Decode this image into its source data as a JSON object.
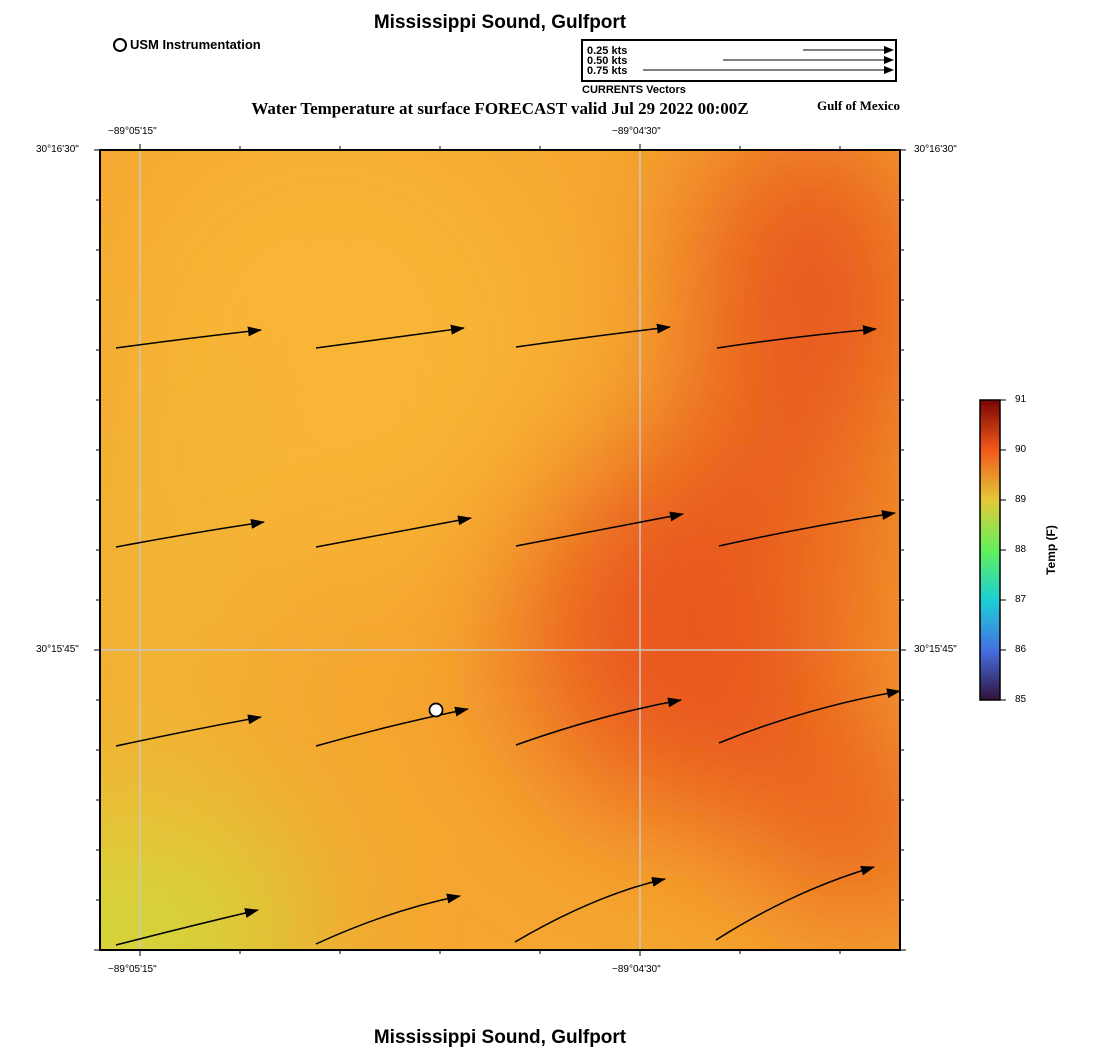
{
  "header": {
    "title": "Mississippi Sound, Gulfport",
    "subtitle": "Water Temperature at surface FORECAST valid Jul 29 2022 00:00Z",
    "region": "Gulf of Mexico",
    "footer_title": "Mississippi Sound, Gulfport"
  },
  "legend": {
    "station_label": "USM Instrumentation",
    "vector_scale": [
      "0.25 kts",
      "0.50 kts",
      "0.75 kts"
    ],
    "vector_caption": "CURRENTS Vectors"
  },
  "axes": {
    "lon_ticks": [
      "−89°05'15\"",
      "−89°04'30\""
    ],
    "lat_ticks": [
      "30°16'30\"",
      "30°15'45\""
    ]
  },
  "colorbar": {
    "label": "Temp (F)",
    "ticks": [
      "91",
      "90",
      "89",
      "88",
      "87",
      "86",
      "85"
    ],
    "min": 85,
    "max": 91
  },
  "colors": {
    "cool": "#d2d93a",
    "warm": "#f9b233",
    "hot": "#e8541a"
  }
}
